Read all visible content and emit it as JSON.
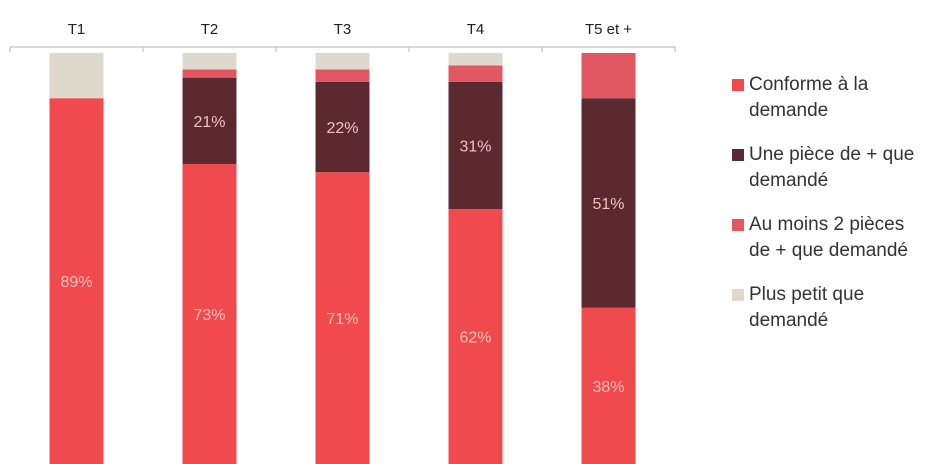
{
  "chart_data": {
    "type": "bar",
    "stacked": true,
    "orientation": "vertical",
    "x_axis_position": "top",
    "categories": [
      "T1",
      "T2",
      "T3",
      "T4",
      "T5 et +"
    ],
    "series": [
      {
        "name": "Conforme à la demande",
        "color": "#f14a4e",
        "values": [
          89,
          73,
          71,
          62,
          38
        ],
        "labels": [
          "89%",
          "73%",
          "71%",
          "62%",
          "38%"
        ]
      },
      {
        "name": "Une pièce de + que demandé",
        "color": "#5a2a30",
        "values": [
          0,
          21,
          22,
          31,
          51
        ],
        "labels": [
          "",
          "21%",
          "22%",
          "31%",
          "51%"
        ]
      },
      {
        "name": "Au moins 2 pièces de + que demandé",
        "color": "#e25862",
        "values": [
          0,
          2,
          3,
          4,
          11
        ],
        "labels": [
          "",
          "",
          "",
          "",
          ""
        ]
      },
      {
        "name": "Plus petit que demandé",
        "color": "#ded8cd",
        "values": [
          11,
          4,
          4,
          3,
          0
        ],
        "labels": [
          "",
          "",
          "",
          "",
          ""
        ]
      }
    ],
    "ylim": [
      0,
      100
    ],
    "legend_position": "right",
    "grid": false
  }
}
